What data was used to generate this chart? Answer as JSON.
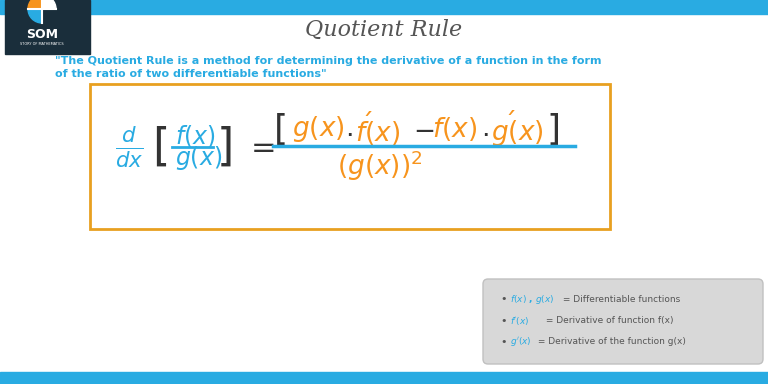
{
  "title": "Quotient Rule",
  "title_color": "#555555",
  "bg_color": "#ffffff",
  "top_bar_color": "#29ABE2",
  "bottom_bar_color": "#29ABE2",
  "quote_text_line1": "\"The Quotient Rule is a method for determining the derivative of a function in the form",
  "quote_text_line2": "of the ratio of two differentiable functions\"",
  "quote_color": "#29ABE2",
  "formula_box_color": "#E8A020",
  "blue_color": "#29ABE2",
  "orange_color": "#F7941D",
  "legend_bg": "#D8D8D8",
  "legend_items": [
    {
      "colored": "f(x) , g(x)",
      "rest": " = Differentiable functions",
      "color": "#29ABE2"
    },
    {
      "colored": "f'(x)",
      "rest": " = Derivative of function f(x)",
      "color": "#29ABE2"
    },
    {
      "colored": "g'(x)",
      "rest": " = Derivative of the function g(x)",
      "color": "#29ABE2"
    }
  ],
  "logo_dark": "#1a2e3b",
  "logo_orange": "#F7941D",
  "logo_blue": "#29ABE2"
}
